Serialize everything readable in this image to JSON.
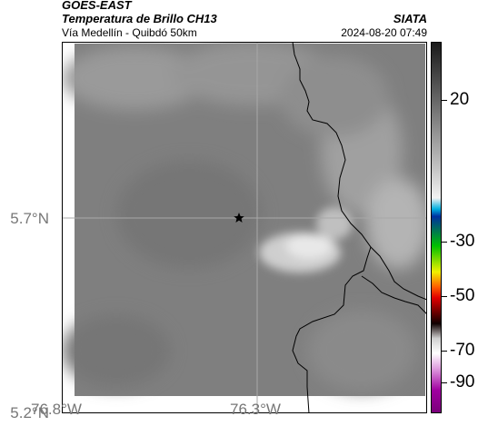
{
  "header": {
    "title_line1": "GOES-EAST",
    "title_line2": "Temperatura de Brillo CH13",
    "subtitle": "Vía Medellín - Quibdó 50km",
    "source": "SIATA",
    "datetime": "2024-08-20 07:49"
  },
  "axes": {
    "y_ticks": [
      {
        "label": "5.7°N",
        "value": 5.7
      },
      {
        "label": "5.2°N",
        "value": 5.2
      }
    ],
    "x_ticks": [
      {
        "label": "76.8°W",
        "value": -76.8
      },
      {
        "label": "76.3°W",
        "value": -76.3
      }
    ]
  },
  "colorbar": {
    "ticks": [
      {
        "label": "20",
        "value": 20
      },
      {
        "label": "-30",
        "value": -30
      },
      {
        "label": "-50",
        "value": -50
      },
      {
        "label": "-70",
        "value": -70
      },
      {
        "label": "-90",
        "value": -90
      }
    ]
  },
  "colors": {
    "background_field": "#7d7d7d",
    "cloud_bright": "#e6e6e6",
    "border_line": "#000000",
    "grid_line": "#a8a8a8"
  },
  "icons": [
    "location-star-icon"
  ]
}
